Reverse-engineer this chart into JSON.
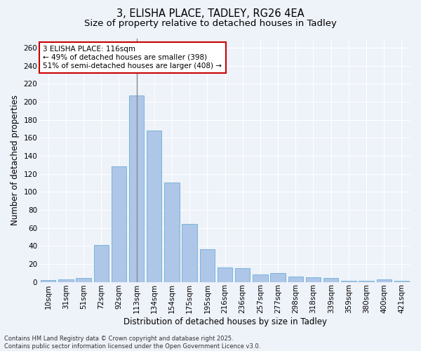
{
  "title1": "3, ELISHA PLACE, TADLEY, RG26 4EA",
  "title2": "Size of property relative to detached houses in Tadley",
  "xlabel": "Distribution of detached houses by size in Tadley",
  "ylabel": "Number of detached properties",
  "categories": [
    "10sqm",
    "31sqm",
    "51sqm",
    "72sqm",
    "92sqm",
    "113sqm",
    "134sqm",
    "154sqm",
    "175sqm",
    "195sqm",
    "216sqm",
    "236sqm",
    "257sqm",
    "277sqm",
    "298sqm",
    "318sqm",
    "339sqm",
    "359sqm",
    "380sqm",
    "400sqm",
    "421sqm"
  ],
  "values": [
    2,
    3,
    4,
    41,
    128,
    207,
    168,
    110,
    64,
    36,
    16,
    15,
    8,
    10,
    6,
    5,
    4,
    1,
    1,
    3,
    1
  ],
  "bar_color": "#aec6e8",
  "bar_edge_color": "#6baed6",
  "highlight_bar_index": 5,
  "highlight_line_color": "#888888",
  "ylim": [
    0,
    270
  ],
  "yticks": [
    0,
    20,
    40,
    60,
    80,
    100,
    120,
    140,
    160,
    180,
    200,
    220,
    240,
    260
  ],
  "annotation_text": "3 ELISHA PLACE: 116sqm\n← 49% of detached houses are smaller (398)\n51% of semi-detached houses are larger (408) →",
  "annotation_box_color": "#ffffff",
  "annotation_box_edge_color": "#cc0000",
  "footer_text": "Contains HM Land Registry data © Crown copyright and database right 2025.\nContains public sector information licensed under the Open Government Licence v3.0.",
  "background_color": "#eef2f9",
  "grid_color": "#ffffff",
  "title_fontsize": 10.5,
  "subtitle_fontsize": 9.5,
  "label_fontsize": 8.5,
  "tick_fontsize": 7.5,
  "annotation_fontsize": 7.5,
  "footer_fontsize": 6.0
}
